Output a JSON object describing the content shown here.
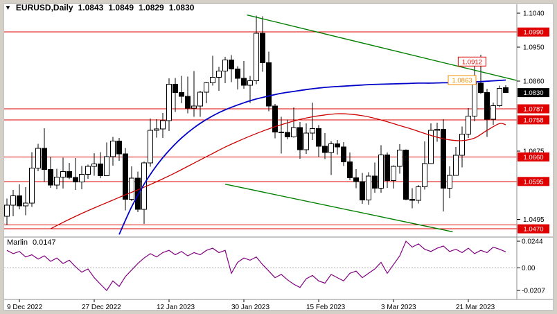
{
  "header": {
    "marker_icon": "▼",
    "symbol_period": "EURUSD,Daily",
    "open": "1.0843",
    "high": "1.0849",
    "low": "1.0829",
    "close": "1.0830"
  },
  "colors": {
    "background": "#ffffff",
    "frame": "#d4d0c8",
    "inner_border": "#c0c0c0",
    "separator": "#8c8c8c",
    "axis_text": "#000000",
    "level_red": "#e00000",
    "badge_black": "#000000",
    "floating_orange": "#ef8e00",
    "ma_blue": "#0000c8",
    "ma_red": "#cc0000",
    "trendline_green": "#007f00",
    "indicator_purple": "#800080",
    "bull": "#ffffff",
    "bear": "#000000",
    "wick": "#000000",
    "zero_line": "#b0b0b0"
  },
  "chart_data": {
    "type": "candlestick",
    "title": "EURUSD,Daily 1.0843 1.0849 1.0829 1.0830",
    "symbol": "EURUSD",
    "timeframe": "Daily",
    "x_axis_labels": [
      {
        "index": 2,
        "label": "9 Dec 2022"
      },
      {
        "index": 14,
        "label": "27 Dec 2022"
      },
      {
        "index": 26,
        "label": "12 Jan 2023"
      },
      {
        "index": 38,
        "label": "30 Jan 2023"
      },
      {
        "index": 50,
        "label": "15 Feb 2023"
      },
      {
        "index": 62,
        "label": "3 Mar 2023"
      },
      {
        "index": 74,
        "label": "21 Mar 2023"
      }
    ],
    "y_axis": {
      "price_min": 1.045,
      "price_max": 1.106,
      "ticks": [
        {
          "label": "1.1040",
          "value": 1.104
        },
        {
          "label": "1.0950",
          "value": 1.095
        },
        {
          "label": "1.0860",
          "value": 1.086
        },
        {
          "label": "1.0675",
          "value": 1.0675
        },
        {
          "label": "1.0495",
          "value": 1.0495
        }
      ]
    },
    "candles_format": "open,high,low,close",
    "candles": [
      [
        1.0503,
        1.055,
        1.048,
        1.0532
      ],
      [
        1.0532,
        1.0573,
        1.0503,
        1.0557
      ],
      [
        1.0557,
        1.0587,
        1.0521,
        1.0531
      ],
      [
        1.0531,
        1.058,
        1.0506,
        1.0538
      ],
      [
        1.0538,
        1.0673,
        1.0528,
        1.063
      ],
      [
        1.063,
        1.0695,
        1.0622,
        1.0683
      ],
      [
        1.0683,
        1.0736,
        1.0594,
        1.0627
      ],
      [
        1.0627,
        1.0661,
        1.0578,
        1.0586
      ],
      [
        1.0586,
        1.0629,
        1.0575,
        1.0607
      ],
      [
        1.0607,
        1.0658,
        1.0576,
        1.0621
      ],
      [
        1.0621,
        1.0644,
        1.0601,
        1.0606
      ],
      [
        1.0606,
        1.0657,
        1.0573,
        1.0594
      ],
      [
        1.0594,
        1.0636,
        1.0575,
        1.0614
      ],
      [
        1.0614,
        1.064,
        1.0602,
        1.0635
      ],
      [
        1.0635,
        1.067,
        1.061,
        1.0641
      ],
      [
        1.0641,
        1.0673,
        1.0604,
        1.061
      ],
      [
        1.061,
        1.0698,
        1.0609,
        1.0661
      ],
      [
        1.0661,
        1.0713,
        1.0637,
        1.0702
      ],
      [
        1.0702,
        1.071,
        1.065,
        1.0668
      ],
      [
        1.0668,
        1.0684,
        1.0519,
        1.0548
      ],
      [
        1.0548,
        1.0635,
        1.0543,
        1.0604
      ],
      [
        1.0604,
        1.0621,
        1.0514,
        1.0521
      ],
      [
        1.0521,
        1.0648,
        1.0483,
        1.0644
      ],
      [
        1.0644,
        1.0761,
        1.0634,
        1.073
      ],
      [
        1.073,
        1.076,
        1.0711,
        1.0734
      ],
      [
        1.0734,
        1.0776,
        1.071,
        1.0756
      ],
      [
        1.0756,
        1.0868,
        1.0728,
        1.0852
      ],
      [
        1.0852,
        1.0869,
        1.0779,
        1.083
      ],
      [
        1.083,
        1.0874,
        1.0802,
        1.082
      ],
      [
        1.082,
        1.0872,
        1.0775,
        1.0789
      ],
      [
        1.0789,
        1.0887,
        1.0766,
        1.0794
      ],
      [
        1.0794,
        1.0835,
        1.0766,
        1.0831
      ],
      [
        1.0831,
        1.0858,
        1.0802,
        1.0856
      ],
      [
        1.0856,
        1.0927,
        1.0848,
        1.087
      ],
      [
        1.087,
        1.0898,
        1.0835,
        1.0887
      ],
      [
        1.0887,
        1.0924,
        1.0855,
        1.0916
      ],
      [
        1.0916,
        1.0929,
        1.0858,
        1.0892
      ],
      [
        1.0892,
        1.09,
        1.0838,
        1.0868
      ],
      [
        1.0868,
        1.0913,
        1.084,
        1.0849
      ],
      [
        1.0849,
        1.0874,
        1.0803,
        1.0861
      ],
      [
        1.0861,
        1.1033,
        1.0852,
        1.0987
      ],
      [
        1.0987,
        1.1032,
        1.0885,
        1.0909
      ],
      [
        1.0909,
        1.0938,
        1.0781,
        1.0794
      ],
      [
        1.0794,
        1.08,
        1.0709,
        1.0726
      ],
      [
        1.0726,
        1.0766,
        1.0669,
        1.0725
      ],
      [
        1.0725,
        1.0759,
        1.0706,
        1.0713
      ],
      [
        1.0713,
        1.0791,
        1.0711,
        1.0738
      ],
      [
        1.0738,
        1.0752,
        1.0655,
        1.0679
      ],
      [
        1.0679,
        1.0749,
        1.0668,
        1.0723
      ],
      [
        1.0723,
        1.0804,
        1.0705,
        1.0735
      ],
      [
        1.0735,
        1.0744,
        1.066,
        1.0688
      ],
      [
        1.0688,
        1.0723,
        1.0654,
        1.0672
      ],
      [
        1.0672,
        1.0702,
        1.0612,
        1.0695
      ],
      [
        1.0695,
        1.0705,
        1.0666,
        1.0686
      ],
      [
        1.0686,
        1.0699,
        1.0636,
        1.0647
      ],
      [
        1.0647,
        1.0672,
        1.0598,
        1.0605
      ],
      [
        1.0605,
        1.0628,
        1.0577,
        1.0595
      ],
      [
        1.0595,
        1.0618,
        1.0536,
        1.0546
      ],
      [
        1.0546,
        1.0619,
        1.0533,
        1.0609
      ],
      [
        1.0609,
        1.0645,
        1.0565,
        1.0577
      ],
      [
        1.0577,
        1.0691,
        1.0565,
        1.0665
      ],
      [
        1.0665,
        1.0672,
        1.0578,
        1.0597
      ],
      [
        1.0597,
        1.0638,
        1.0576,
        1.0635
      ],
      [
        1.0635,
        1.0694,
        1.0616,
        1.0678
      ],
      [
        1.0678,
        1.068,
        1.0545,
        1.0548
      ],
      [
        1.0548,
        1.0577,
        1.0524,
        1.0545
      ],
      [
        1.0545,
        1.0586,
        1.0537,
        1.0581
      ],
      [
        1.0581,
        1.0701,
        1.0574,
        1.0642
      ],
      [
        1.0642,
        1.0749,
        1.0641,
        1.073
      ],
      [
        1.073,
        1.075,
        1.07,
        1.0733
      ],
      [
        1.0733,
        1.076,
        1.0516,
        1.0577
      ],
      [
        1.0577,
        1.0635,
        1.0551,
        1.0611
      ],
      [
        1.0611,
        1.0686,
        1.0611,
        1.0664
      ],
      [
        1.0664,
        1.074,
        1.0632,
        1.072
      ],
      [
        1.072,
        1.0789,
        1.071,
        1.0768
      ],
      [
        1.0768,
        1.0912,
        1.0754,
        1.0855
      ],
      [
        1.0855,
        1.093,
        1.0826,
        1.083
      ],
      [
        1.083,
        1.084,
        1.0713,
        1.076
      ],
      [
        1.076,
        1.0804,
        1.0745,
        1.0795
      ],
      [
        1.0795,
        1.0848,
        1.0792,
        1.0841
      ],
      [
        1.0843,
        1.0849,
        1.0829,
        1.083
      ]
    ],
    "h_lines": [
      {
        "value": 1.099,
        "label": "1.0990",
        "badge": true
      },
      {
        "value": 1.0787,
        "label": "1.0787",
        "badge": true
      },
      {
        "value": 1.0758,
        "label": "1.0758",
        "badge": true
      },
      {
        "value": 1.066,
        "label": "1.0660",
        "badge": true
      },
      {
        "value": 1.0595,
        "label": "1.0595",
        "badge": true
      },
      {
        "value": 1.048,
        "badge": false
      },
      {
        "value": 1.047,
        "label": "1.0470",
        "badge": true
      }
    ],
    "current_price": {
      "label": "1.0830",
      "value": 1.083
    },
    "floating_labels": [
      {
        "label": "1.0912",
        "value": 1.0912,
        "i": 74.6,
        "color": "red"
      },
      {
        "label": "1.0863",
        "value": 1.0863,
        "i": 73.0,
        "color": "orange"
      }
    ],
    "trendlines": [
      {
        "i1": 38.5,
        "p1": 1.1035,
        "i2": 81.8,
        "p2": 1.0862
      },
      {
        "i1": 35.0,
        "p1": 1.0588,
        "i2": 71.5,
        "p2": 1.0462
      }
    ],
    "ma_blue": {
      "points": [
        [
          18,
          1.0455
        ],
        [
          20,
          1.0528
        ],
        [
          22,
          1.0588
        ],
        [
          24,
          1.0637
        ],
        [
          26,
          1.0677
        ],
        [
          28,
          1.071
        ],
        [
          30,
          1.0737
        ],
        [
          32,
          1.0759
        ],
        [
          34,
          1.0777
        ],
        [
          36,
          1.0791
        ],
        [
          38,
          1.0803
        ],
        [
          40,
          1.0813
        ],
        [
          42,
          1.0821
        ],
        [
          44,
          1.0828
        ],
        [
          46,
          1.0833
        ],
        [
          48,
          1.0838
        ],
        [
          50,
          1.0842
        ],
        [
          52,
          1.0845
        ],
        [
          54,
          1.0847
        ],
        [
          56,
          1.0849
        ],
        [
          58,
          1.0851
        ],
        [
          60,
          1.0852
        ],
        [
          62,
          1.0853
        ],
        [
          64,
          1.0854
        ],
        [
          66,
          1.0855
        ],
        [
          68,
          1.0855
        ],
        [
          70,
          1.0856
        ],
        [
          72,
          1.0856
        ],
        [
          74,
          1.0857
        ],
        [
          76,
          1.0859
        ],
        [
          78,
          1.0861
        ],
        [
          80,
          1.0863
        ]
      ]
    },
    "ma_red": {
      "points": [
        [
          7,
          1.047
        ],
        [
          9,
          1.0487
        ],
        [
          11,
          1.0503
        ],
        [
          13,
          1.0518
        ],
        [
          15,
          1.0532
        ],
        [
          17,
          1.0546
        ],
        [
          19,
          1.056
        ],
        [
          21,
          1.0573
        ],
        [
          23,
          1.0587
        ],
        [
          25,
          1.0602
        ],
        [
          27,
          1.0618
        ],
        [
          29,
          1.0635
        ],
        [
          31,
          1.0652
        ],
        [
          33,
          1.0669
        ],
        [
          35,
          1.0686
        ],
        [
          37,
          1.0701
        ],
        [
          39,
          1.0715
        ],
        [
          41,
          1.0728
        ],
        [
          43,
          1.074
        ],
        [
          45,
          1.075
        ],
        [
          47,
          1.0759
        ],
        [
          49,
          1.0766
        ],
        [
          51,
          1.0771
        ],
        [
          53,
          1.0774
        ],
        [
          55,
          1.0773
        ],
        [
          57,
          1.0769
        ],
        [
          59,
          1.0762
        ],
        [
          61,
          1.0753
        ],
        [
          63,
          1.0743
        ],
        [
          65,
          1.0733
        ],
        [
          67,
          1.0722
        ],
        [
          69,
          1.0712
        ],
        [
          71,
          1.0705
        ],
        [
          73,
          1.0703
        ],
        [
          75,
          1.071
        ],
        [
          77,
          1.073
        ],
        [
          79,
          1.0748
        ],
        [
          80,
          1.0745
        ]
      ]
    },
    "indicator": {
      "name": "Marlin",
      "value": "0.0147",
      "min": -0.0207,
      "max": 0.0244,
      "ticks": [
        {
          "label": "0.0244",
          "value": 0.0244
        },
        {
          "label": "0.00",
          "value": 0
        },
        {
          "label": "-0.0207",
          "value": -0.0207
        }
      ],
      "values": [
        0.016,
        0.013,
        0.015,
        0.01,
        0.012,
        0.008,
        0.011,
        0.006,
        0.009,
        0.004,
        0.007,
        0.001,
        -0.004,
        -0.001,
        -0.009,
        -0.015,
        -0.0207,
        -0.012,
        -0.017,
        -0.008,
        -0.002,
        0.004,
        0.009,
        0.013,
        0.01,
        0.014,
        0.016,
        0.012,
        0.015,
        0.011,
        0.014,
        0.012,
        0.016,
        0.018,
        0.014,
        0.016,
        -0.005,
        0.005,
        0.009,
        0.007,
        0.01,
        0.003,
        -0.003,
        -0.009,
        -0.006,
        -0.011,
        -0.015,
        -0.018,
        -0.01,
        -0.007,
        -0.012,
        -0.014,
        -0.006,
        -0.009,
        -0.012,
        -0.005,
        -0.003,
        -0.009,
        -0.005,
        -0.001,
        0.005,
        -0.005,
        0.003,
        0.011,
        0.0244,
        0.019,
        0.022,
        0.017,
        0.015,
        0.018,
        0.02,
        0.015,
        0.017,
        0.014,
        0.018,
        0.013,
        0.016,
        0.014,
        0.019,
        0.017,
        0.0147
      ]
    }
  }
}
